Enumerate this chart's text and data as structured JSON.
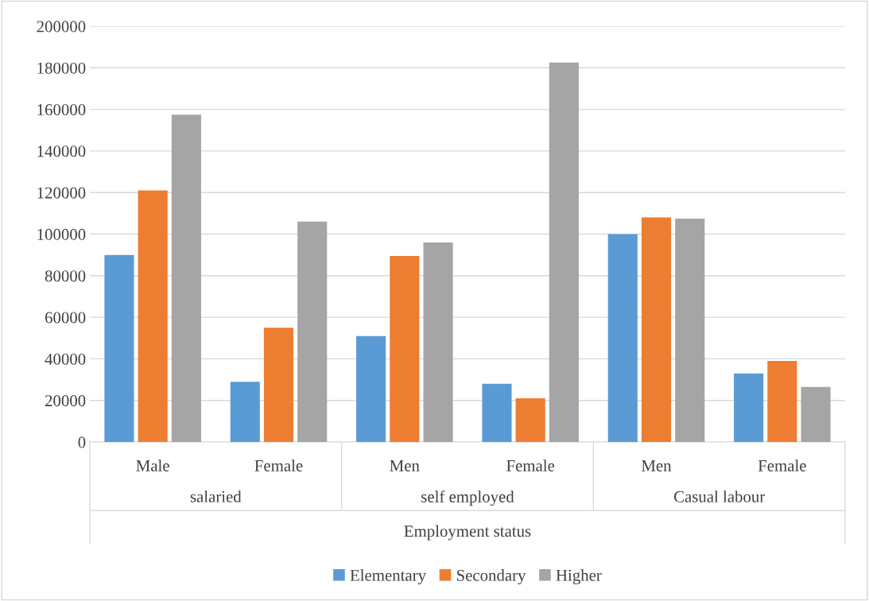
{
  "chart_data": {
    "type": "bar",
    "xlabel": "Employment status",
    "categories": [
      "Male",
      "Female",
      "Men",
      "Female",
      "Men",
      "Female"
    ],
    "series": [
      {
        "name": "Elementary",
        "color": "#5b9bd5",
        "values": [
          90000,
          29000,
          51000,
          28000,
          100000,
          33000
        ]
      },
      {
        "name": "Secondary",
        "color": "#ed7d31",
        "values": [
          121000,
          55000,
          89500,
          21000,
          108000,
          39000
        ]
      },
      {
        "name": "Higher",
        "color": "#a5a5a5",
        "values": [
          157500,
          106000,
          96000,
          182500,
          107500,
          26500
        ]
      }
    ],
    "annotations": [
      "salaried",
      "self employed",
      "Casual labour"
    ],
    "ylim": [
      0,
      200000
    ],
    "yticks": [
      0,
      20000,
      40000,
      60000,
      80000,
      100000,
      120000,
      140000,
      160000,
      180000,
      200000
    ],
    "grid": "y",
    "legend": "bottom"
  }
}
